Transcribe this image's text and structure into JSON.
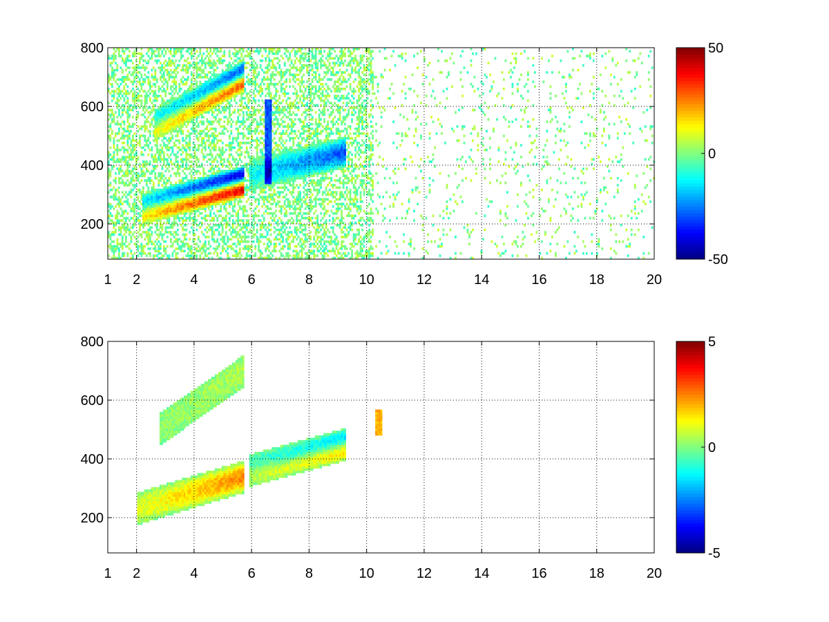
{
  "chart_data": [
    {
      "type": "heatmap",
      "title": "",
      "xlabel": "",
      "ylabel": "",
      "xlim": [
        1,
        20
      ],
      "ylim": [
        80,
        800
      ],
      "xticks": [
        "1",
        "2",
        "4",
        "6",
        "8",
        "10",
        "12",
        "14",
        "16",
        "18",
        "20"
      ],
      "yticks": [
        "200",
        "400",
        "600",
        "800"
      ],
      "grid": true,
      "colormap": "jet",
      "colorbar": {
        "min": -50,
        "max": 50,
        "ticks": [
          "50",
          "0",
          "-50"
        ]
      },
      "features": [
        {
          "x0": 2.2,
          "x1": 5.75,
          "ya": 250,
          "yb": 345,
          "amp": 40,
          "kind": "dipole"
        },
        {
          "x0": 2.6,
          "x1": 5.75,
          "ya": 535,
          "yb": 705,
          "amp": 28,
          "kind": "dipole"
        },
        {
          "x0": 5.9,
          "x1": 9.3,
          "ya": 365,
          "yb": 445,
          "amp": -30,
          "kind": "band"
        },
        {
          "x": 6.6,
          "y0": 340,
          "y1": 620,
          "amp": -30,
          "kind": "streak"
        }
      ],
      "noise": {
        "x_dense_until": 10.2,
        "x_sparse_until": 20,
        "level": 12
      }
    },
    {
      "type": "heatmap",
      "title": "",
      "xlabel": "",
      "ylabel": "",
      "xlim": [
        1,
        20
      ],
      "ylim": [
        80,
        800
      ],
      "xticks": [
        "1",
        "2",
        "4",
        "6",
        "8",
        "10",
        "12",
        "14",
        "16",
        "18",
        "20"
      ],
      "yticks": [
        "200",
        "400",
        "600",
        "800"
      ],
      "grid": true,
      "colormap": "jet",
      "colorbar": {
        "min": -5,
        "max": 5,
        "ticks": [
          "5",
          "0",
          "-5"
        ]
      },
      "features": [
        {
          "x0": 2.0,
          "x1": 5.75,
          "ya": 230,
          "yb": 340,
          "amp": 2.5,
          "kind": "band"
        },
        {
          "x0": 2.8,
          "x1": 5.75,
          "ya": 500,
          "yb": 700,
          "amp": 0.5,
          "kind": "band"
        },
        {
          "x0": 5.9,
          "x1": 9.3,
          "ya": 360,
          "yb": 450,
          "amp": 1.5,
          "kind": "dipole"
        },
        {
          "x": 10.4,
          "y0": 480,
          "y1": 570,
          "amp": 2.0,
          "kind": "streak"
        }
      ],
      "noise": {
        "x_dense_until": 0,
        "x_sparse_until": 0,
        "level": 1
      }
    }
  ]
}
